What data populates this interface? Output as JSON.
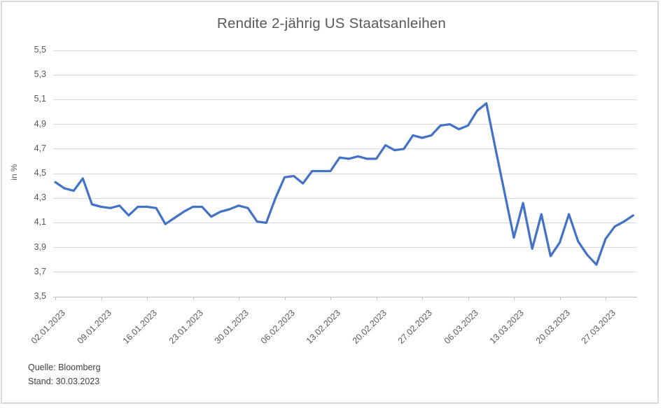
{
  "title": "Rendite 2-jährig US Staatsanleihen",
  "source": {
    "line1": "Quelle: Bloomberg",
    "line2": "Stand: 30.03.2023"
  },
  "colors": {
    "line": "#4472C4",
    "gridline": "#d9d9d9",
    "axis_line": "#bfbfbf",
    "text": "#595959",
    "frame_border": "#d9d9d9"
  },
  "chart_data": {
    "type": "line",
    "title": "Rendite 2-jährig US Staatsanleihen",
    "xlabel": "",
    "ylabel": "in %",
    "ylim": [
      3.5,
      5.5
    ],
    "y_tick_step": 0.2,
    "y_tick_labels": [
      "5,5",
      "5,3",
      "5,1",
      "4,9",
      "4,7",
      "4,5",
      "4,3",
      "4,1",
      "3,9",
      "3,7",
      "3,5"
    ],
    "grid": "horizontal-only",
    "legend": "none",
    "x_tick_labels": [
      "02.01.2023",
      "09.01.2023",
      "16.01.2023",
      "23.01.2023",
      "30.01.2023",
      "06.02.2023",
      "13.02.2023",
      "20.02.2023",
      "27.02.2023",
      "06.03.2023",
      "13.03.2023",
      "20.03.2023",
      "27.03.2023"
    ],
    "x_tick_every": 5,
    "categories": [
      "02.01.2023",
      "03.01.2023",
      "04.01.2023",
      "05.01.2023",
      "06.01.2023",
      "09.01.2023",
      "10.01.2023",
      "11.01.2023",
      "12.01.2023",
      "13.01.2023",
      "16.01.2023",
      "17.01.2023",
      "18.01.2023",
      "19.01.2023",
      "20.01.2023",
      "23.01.2023",
      "24.01.2023",
      "25.01.2023",
      "26.01.2023",
      "27.01.2023",
      "30.01.2023",
      "31.01.2023",
      "01.02.2023",
      "02.02.2023",
      "03.02.2023",
      "06.02.2023",
      "07.02.2023",
      "08.02.2023",
      "09.02.2023",
      "10.02.2023",
      "13.02.2023",
      "14.02.2023",
      "15.02.2023",
      "16.02.2023",
      "17.02.2023",
      "20.02.2023",
      "21.02.2023",
      "22.02.2023",
      "23.02.2023",
      "24.02.2023",
      "27.02.2023",
      "28.02.2023",
      "01.03.2023",
      "02.03.2023",
      "03.03.2023",
      "06.03.2023",
      "07.03.2023",
      "08.03.2023",
      "09.03.2023",
      "10.03.2023",
      "13.03.2023",
      "14.03.2023",
      "15.03.2023",
      "16.03.2023",
      "17.03.2023",
      "20.03.2023",
      "21.03.2023",
      "22.03.2023",
      "23.03.2023",
      "24.03.2023",
      "27.03.2023",
      "28.03.2023",
      "29.03.2023",
      "30.03.2023"
    ],
    "values": [
      4.43,
      4.38,
      4.36,
      4.46,
      4.25,
      4.23,
      4.22,
      4.24,
      4.16,
      4.23,
      4.23,
      4.22,
      4.09,
      4.14,
      4.19,
      4.23,
      4.23,
      4.15,
      4.19,
      4.21,
      4.24,
      4.22,
      4.11,
      4.1,
      4.3,
      4.47,
      4.48,
      4.42,
      4.52,
      4.52,
      4.52,
      4.63,
      4.62,
      4.64,
      4.62,
      4.62,
      4.73,
      4.69,
      4.7,
      4.81,
      4.79,
      4.81,
      4.89,
      4.9,
      4.86,
      4.89,
      5.01,
      5.07,
      4.7,
      4.34,
      3.98,
      4.26,
      3.89,
      4.17,
      3.83,
      3.94,
      4.17,
      3.95,
      3.84,
      3.76,
      3.97,
      4.07,
      4.11,
      4.16
    ]
  }
}
